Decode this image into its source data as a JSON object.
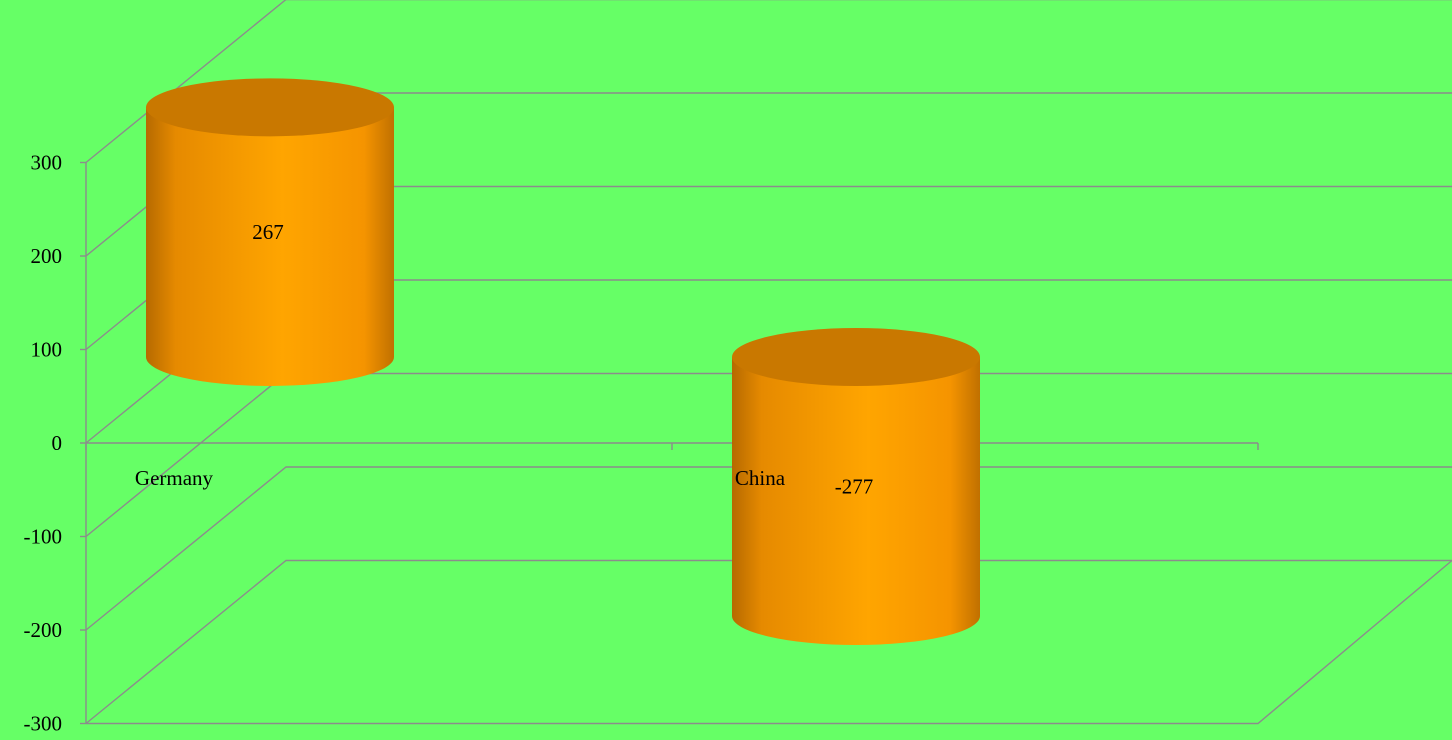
{
  "chart_data": {
    "type": "bar",
    "style": "3d-cylinder",
    "categories": [
      "Germany",
      "China"
    ],
    "values": [
      267,
      -277
    ],
    "data_labels": [
      "267",
      "-277"
    ],
    "ylim": [
      -300,
      300
    ],
    "yticks": [
      300,
      200,
      100,
      0,
      -100,
      -200,
      -300
    ],
    "ytick_labels": [
      "300",
      "200",
      "100",
      "0",
      "-100",
      "-200",
      "-300"
    ],
    "title": "",
    "xlabel": "",
    "ylabel": "",
    "grid": true,
    "legend": "none",
    "colors": {
      "background": "#66ff66",
      "bar": "#ffa200",
      "bar_top": "#c97800",
      "gridline": "#8c8c8c"
    }
  }
}
